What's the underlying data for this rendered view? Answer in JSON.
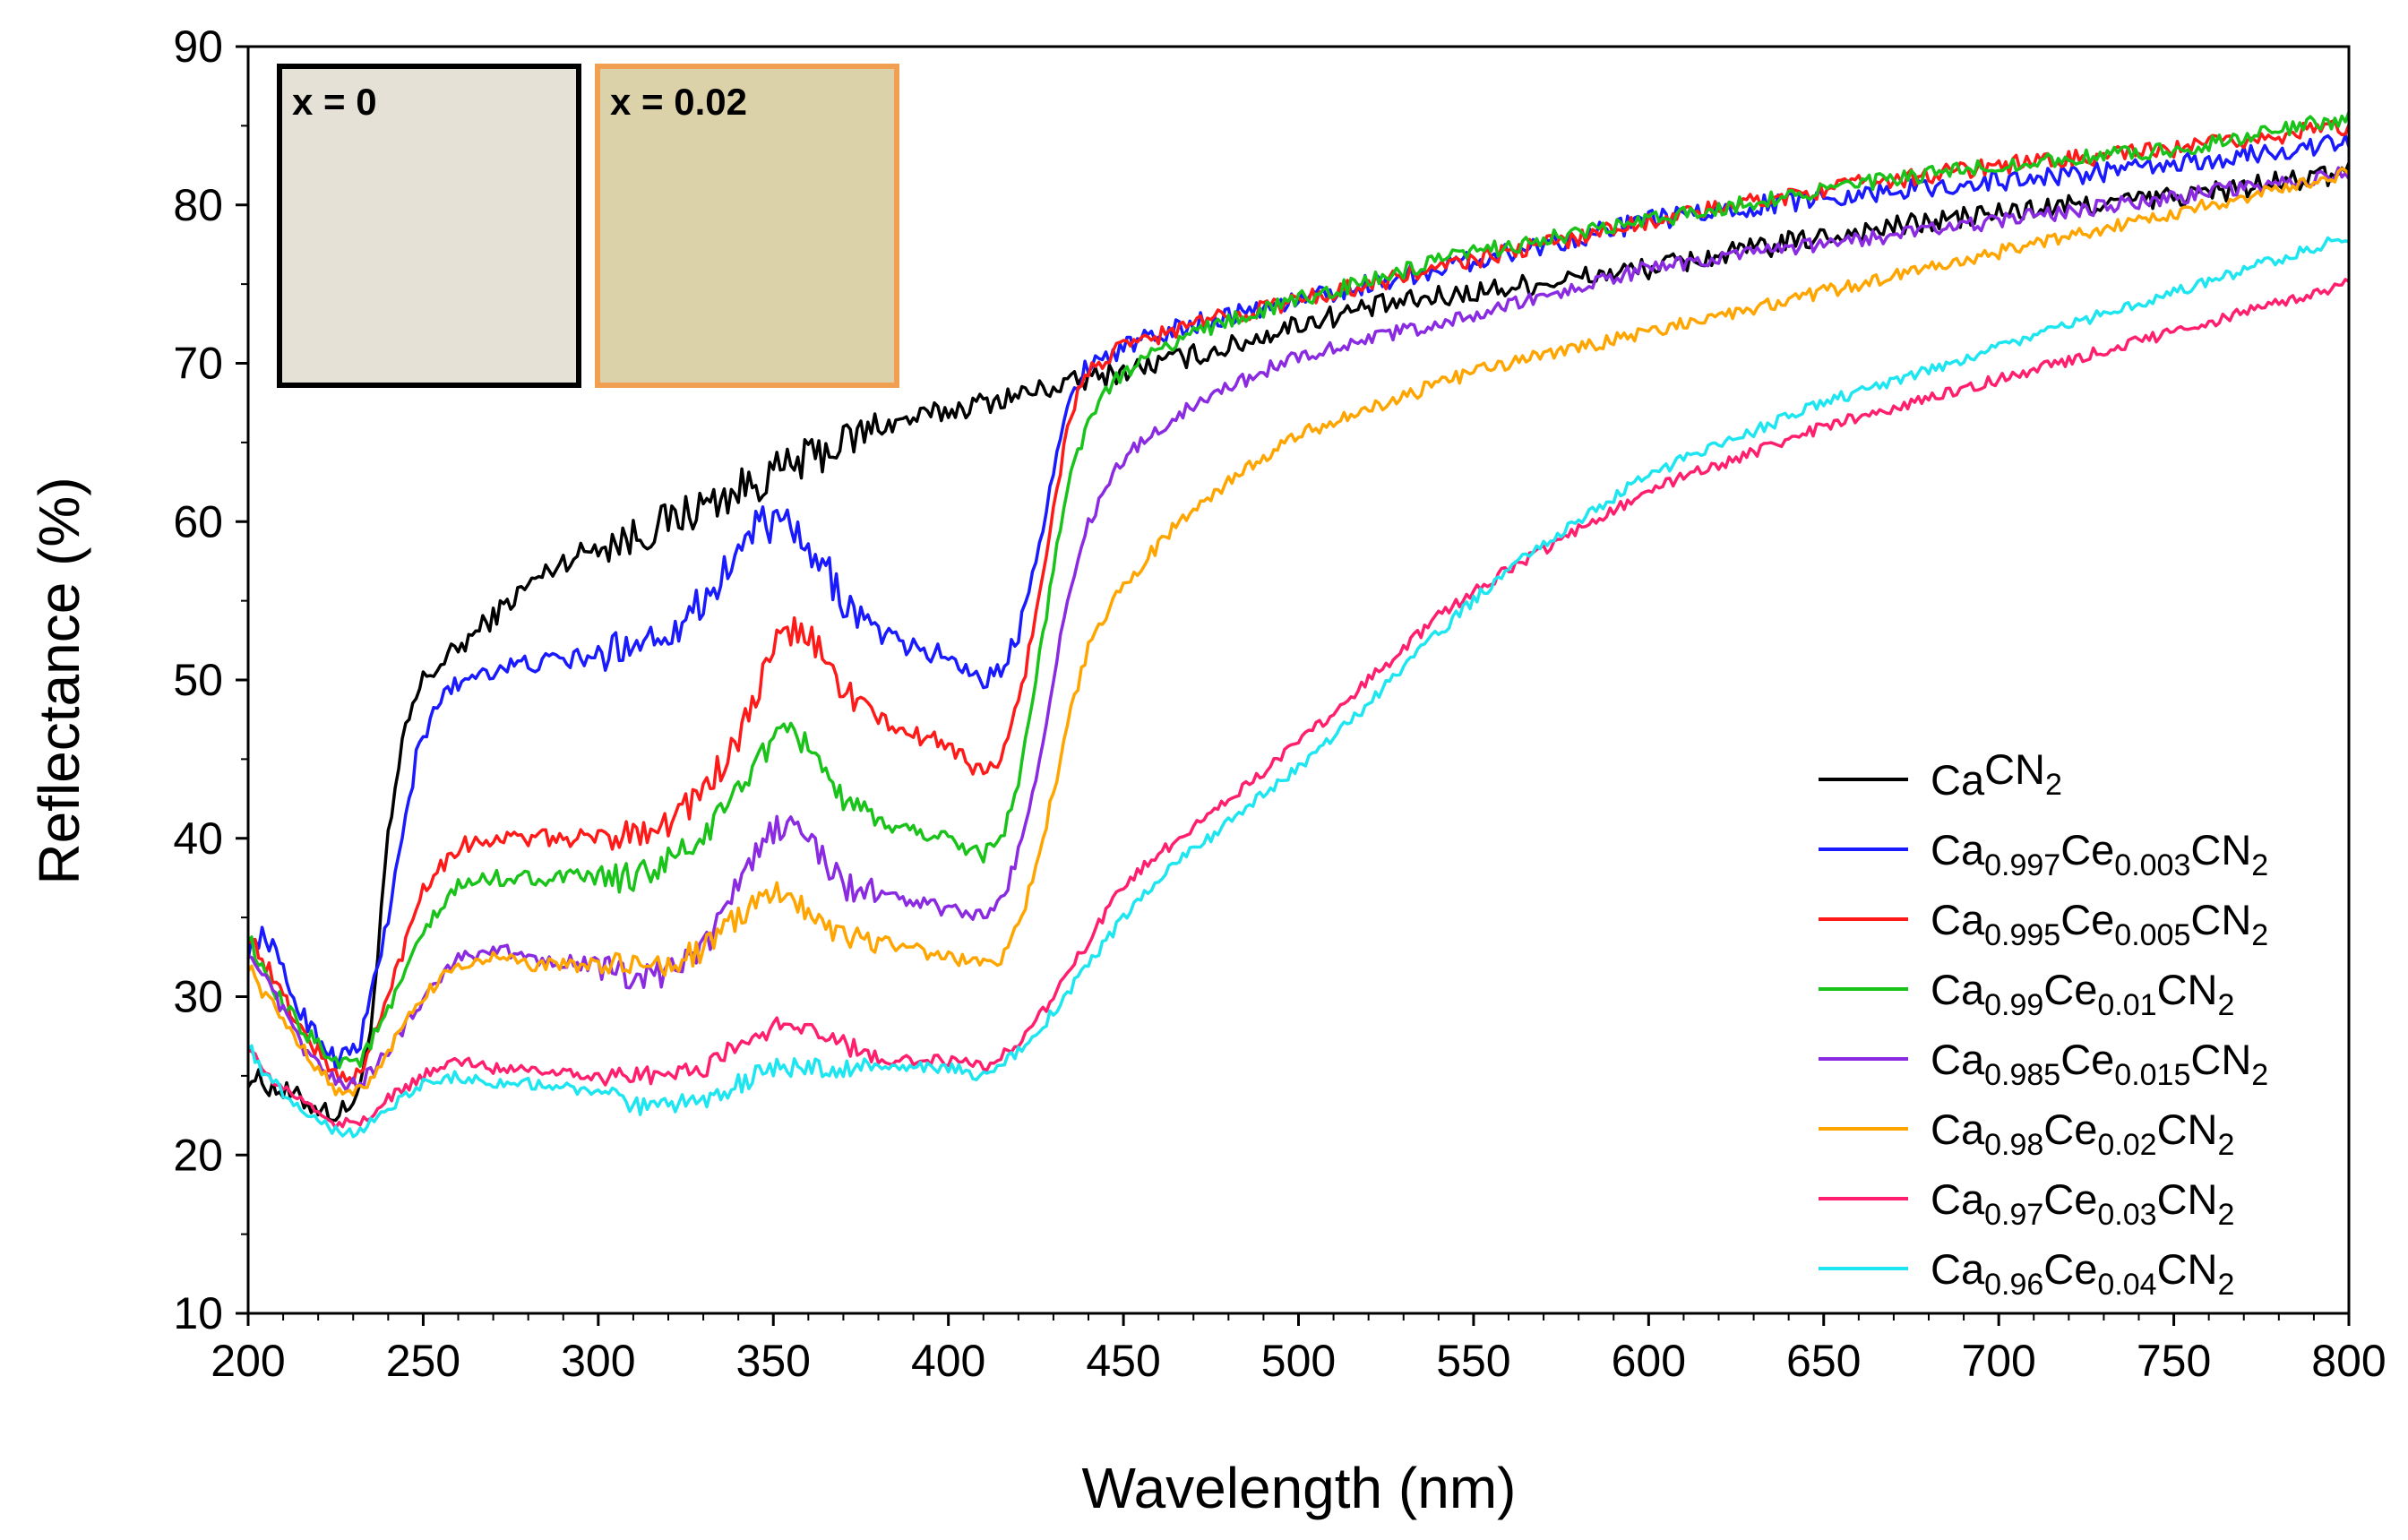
{
  "chart_data": {
    "type": "line",
    "title": "",
    "xlabel": "Wavelength (nm)",
    "ylabel": "Reflectance (%)",
    "xlim": [
      200,
      800
    ],
    "ylim": [
      10,
      90
    ],
    "xticks": [
      200,
      250,
      300,
      350,
      400,
      450,
      500,
      550,
      600,
      650,
      700,
      750,
      800
    ],
    "yticks": [
      10,
      20,
      30,
      40,
      50,
      60,
      70,
      80,
      90
    ],
    "grid": false,
    "legend_position": "bottom-right",
    "series": [
      {
        "name": "CaCN2",
        "legend": {
          "parts": [
            [
              "Ca",
              ""
            ],
            [
              "CN",
              ""
            ],
            [
              "2",
              "sub"
            ]
          ]
        },
        "color": "#000000",
        "x": [
          200,
          210,
          220,
          226,
          232,
          236,
          240,
          245,
          250,
          255,
          260,
          270,
          280,
          290,
          300,
          310,
          320,
          330,
          340,
          350,
          360,
          370,
          380,
          390,
          400,
          410,
          420,
          430,
          440,
          450,
          460,
          480,
          500,
          520,
          550,
          600,
          650,
          700,
          750,
          800
        ],
        "y": [
          25,
          24,
          23,
          22.5,
          24,
          30,
          40,
          47,
          50,
          51,
          52,
          54,
          56,
          57.5,
          58.5,
          59,
          60,
          61,
          62,
          63,
          64,
          65,
          66,
          66.5,
          67,
          67.5,
          68,
          68.5,
          69,
          69.5,
          70,
          71,
          72.5,
          73.5,
          74.5,
          76,
          78,
          79.5,
          80.5,
          82
        ],
        "noise": 0.9
      },
      {
        "name": "Ca0.997Ce0.003CN2",
        "legend": {
          "parts": [
            [
              "Ca",
              ""
            ],
            [
              "0.997",
              "sub"
            ],
            [
              "Ce",
              ""
            ],
            [
              "0.003",
              "sub"
            ],
            [
              "CN",
              ""
            ],
            [
              "2",
              "sub"
            ]
          ]
        },
        "color": "#1a1aff",
        "x": [
          200,
          205,
          215,
          225,
          232,
          240,
          248,
          255,
          265,
          280,
          300,
          310,
          320,
          330,
          340,
          345,
          350,
          355,
          360,
          365,
          370,
          380,
          390,
          400,
          410,
          415,
          420,
          425,
          430,
          435,
          440,
          450,
          470,
          500,
          550,
          600,
          650,
          700,
          750,
          800
        ],
        "y": [
          33,
          34,
          29,
          26,
          27,
          35,
          45,
          49,
          50.5,
          51,
          51.5,
          52.5,
          53,
          55,
          58,
          60,
          59.5,
          60,
          57.5,
          57,
          55,
          53,
          52,
          51.5,
          50,
          50.5,
          53,
          58,
          63,
          68,
          70,
          71,
          72.5,
          74,
          76.5,
          79,
          80.5,
          81.5,
          82.5,
          84
        ],
        "noise": 0.8
      },
      {
        "name": "Ca0.995Ce0.005CN2",
        "legend": {
          "parts": [
            [
              "Ca",
              ""
            ],
            [
              "0.995",
              "sub"
            ],
            [
              "Ce",
              ""
            ],
            [
              "0.005",
              "sub"
            ],
            [
              "CN",
              ""
            ],
            [
              "2",
              "sub"
            ]
          ]
        },
        "color": "#ff1a1a",
        "x": [
          200,
          205,
          215,
          225,
          232,
          240,
          250,
          260,
          270,
          280,
          300,
          310,
          320,
          330,
          340,
          345,
          350,
          355,
          360,
          365,
          370,
          380,
          390,
          400,
          410,
          415,
          420,
          425,
          430,
          435,
          440,
          450,
          470,
          500,
          550,
          600,
          650,
          700,
          750,
          800
        ],
        "y": [
          34,
          32,
          28,
          25,
          25,
          30,
          37,
          39.5,
          40,
          40,
          40,
          40.5,
          41,
          43,
          46,
          49,
          52,
          53,
          53,
          51,
          49.5,
          47.5,
          46.5,
          46,
          44,
          45,
          48.5,
          54,
          61,
          67,
          69.5,
          71,
          72.5,
          74,
          76.5,
          79,
          81,
          82.5,
          83.5,
          85
        ],
        "noise": 0.7
      },
      {
        "name": "Ca0.99Ce0.01CN2",
        "legend": {
          "parts": [
            [
              "Ca",
              ""
            ],
            [
              "0.99",
              "sub"
            ],
            [
              "Ce",
              ""
            ],
            [
              "0.01",
              "sub"
            ],
            [
              "CN",
              ""
            ],
            [
              "2",
              "sub"
            ]
          ]
        },
        "color": "#19c319",
        "x": [
          200,
          205,
          215,
          225,
          232,
          240,
          250,
          260,
          270,
          280,
          300,
          310,
          320,
          330,
          340,
          345,
          350,
          355,
          360,
          365,
          370,
          380,
          390,
          400,
          410,
          415,
          420,
          425,
          430,
          435,
          440,
          450,
          470,
          500,
          550,
          600,
          650,
          700,
          750,
          800
        ],
        "y": [
          34,
          31,
          28,
          26,
          26,
          29,
          34,
          37,
          37.5,
          37.5,
          37.5,
          37.5,
          38.5,
          40,
          43,
          45,
          46,
          46.5,
          46,
          44.5,
          42,
          41,
          40.5,
          40,
          39,
          40,
          43.5,
          50,
          57,
          63,
          66.5,
          69.5,
          72,
          74,
          77,
          79,
          81,
          82.5,
          83.5,
          85.5
        ],
        "noise": 0.65
      },
      {
        "name": "Ca0.985Ce0.015CN2",
        "legend": {
          "parts": [
            [
              "Ca",
              ""
            ],
            [
              "0.985",
              "sub"
            ],
            [
              "Ce",
              ""
            ],
            [
              "0.015",
              "sub"
            ],
            [
              "CN",
              ""
            ],
            [
              "2",
              "sub"
            ]
          ]
        },
        "color": "#8a2be2",
        "x": [
          200,
          205,
          215,
          225,
          232,
          240,
          250,
          260,
          270,
          280,
          300,
          310,
          320,
          330,
          340,
          345,
          350,
          355,
          360,
          365,
          370,
          380,
          390,
          400,
          410,
          415,
          420,
          425,
          430,
          435,
          440,
          450,
          470,
          500,
          550,
          600,
          650,
          700,
          750,
          800
        ],
        "y": [
          33,
          31,
          27,
          24.5,
          24.5,
          26.5,
          30,
          32.5,
          33,
          32.5,
          32,
          31,
          31.5,
          33,
          37,
          39,
          40.5,
          41,
          40,
          38.5,
          37,
          36.5,
          36,
          35.5,
          35,
          36,
          39,
          44,
          50,
          56,
          60,
          64,
          67.5,
          70.5,
          73,
          76,
          77.5,
          79,
          80.5,
          82
        ],
        "noise": 0.6
      },
      {
        "name": "Ca0.98Ce0.02CN2",
        "legend": {
          "parts": [
            [
              "Ca",
              ""
            ],
            [
              "0.98",
              "sub"
            ],
            [
              "Ce",
              ""
            ],
            [
              "0.02",
              "sub"
            ],
            [
              "CN",
              ""
            ],
            [
              "2",
              "sub"
            ]
          ]
        },
        "color": "#ffa500",
        "x": [
          200,
          205,
          215,
          225,
          232,
          240,
          250,
          260,
          270,
          280,
          300,
          310,
          320,
          330,
          340,
          345,
          350,
          355,
          360,
          365,
          370,
          380,
          390,
          400,
          410,
          415,
          420,
          425,
          430,
          435,
          440,
          450,
          470,
          500,
          550,
          600,
          650,
          700,
          750,
          800
        ],
        "y": [
          32,
          30,
          27,
          24,
          24,
          26.5,
          30,
          32,
          32.5,
          32,
          32,
          32,
          32,
          33,
          35,
          36,
          36.5,
          36.5,
          35.5,
          34.5,
          34,
          33.5,
          33,
          32.5,
          32,
          32.5,
          34.5,
          38,
          43,
          48,
          52,
          56,
          61,
          65.5,
          69.5,
          72,
          74.5,
          77,
          79.5,
          82
        ],
        "noise": 0.55
      },
      {
        "name": "Ca0.97Ce0.03CN2",
        "legend": {
          "parts": [
            [
              "Ca",
              ""
            ],
            [
              "0.97",
              "sub"
            ],
            [
              "Ce",
              ""
            ],
            [
              "0.03",
              "sub"
            ],
            [
              "CN",
              ""
            ],
            [
              "2",
              "sub"
            ]
          ]
        },
        "color": "#ff1f6e",
        "x": [
          200,
          205,
          215,
          225,
          232,
          240,
          250,
          260,
          270,
          280,
          300,
          310,
          320,
          330,
          340,
          345,
          350,
          355,
          360,
          370,
          380,
          400,
          410,
          420,
          430,
          440,
          450,
          460,
          480,
          500,
          520,
          540,
          560,
          600,
          650,
          700,
          750,
          800
        ],
        "y": [
          27,
          25,
          23.5,
          22,
          22,
          23.5,
          25,
          26,
          25.5,
          25.5,
          25,
          25,
          25,
          25.5,
          27,
          27.5,
          28,
          28.5,
          28,
          27,
          26,
          26,
          25.5,
          27,
          30,
          33.5,
          37,
          39,
          42.5,
          46,
          50,
          54,
          57,
          62,
          66,
          69,
          72,
          75
        ],
        "noise": 0.45
      },
      {
        "name": "Ca0.96Ce0.04CN2",
        "legend": {
          "parts": [
            [
              "Ca",
              ""
            ],
            [
              "0.96",
              "sub"
            ],
            [
              "Ce",
              ""
            ],
            [
              "0.04",
              "sub"
            ],
            [
              "CN",
              ""
            ],
            [
              "2",
              "sub"
            ]
          ]
        },
        "color": "#1ee6f0",
        "x": [
          200,
          205,
          215,
          225,
          232,
          240,
          250,
          260,
          270,
          280,
          300,
          310,
          320,
          330,
          340,
          345,
          350,
          355,
          360,
          370,
          380,
          400,
          410,
          420,
          430,
          440,
          450,
          460,
          480,
          500,
          520,
          540,
          560,
          600,
          650,
          700,
          750,
          800
        ],
        "y": [
          27,
          25,
          23,
          21.5,
          21.5,
          23,
          24.5,
          25,
          24.5,
          24.5,
          24,
          23,
          23,
          23.5,
          24.5,
          25,
          25.5,
          25.5,
          25.5,
          25.5,
          25.5,
          25.5,
          25,
          26.5,
          29,
          32,
          35,
          37.5,
          41,
          44.5,
          48.5,
          53,
          57,
          63,
          67.5,
          71,
          74.5,
          78
        ],
        "noise": 0.45
      }
    ]
  },
  "insets": [
    {
      "label": "x = 0",
      "border_color": "#000000",
      "fill": "#e6e1d6"
    },
    {
      "label": "x = 0.02",
      "border_color": "#f0a050",
      "fill": "#dcd2aa"
    }
  ]
}
